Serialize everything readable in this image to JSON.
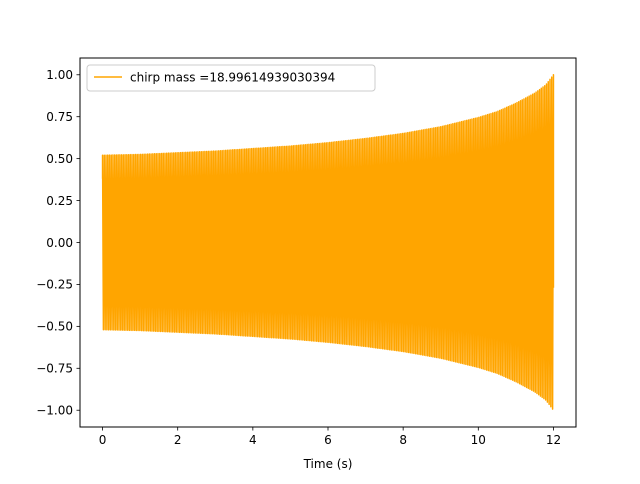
{
  "chart_data": {
    "type": "line",
    "title": "",
    "xlabel": "Time (s)",
    "ylabel": "",
    "xlim": [
      -0.6,
      12.6
    ],
    "ylim": [
      -1.1,
      1.1
    ],
    "xticks": [
      0,
      2,
      4,
      6,
      8,
      10,
      12
    ],
    "yticks": [
      -1.0,
      -0.75,
      -0.5,
      -0.25,
      0.0,
      0.25,
      0.5,
      0.75,
      1.0
    ],
    "xtick_labels": [
      "0",
      "2",
      "4",
      "6",
      "8",
      "10",
      "12"
    ],
    "ytick_labels": [
      "−1.00",
      "−0.75",
      "−0.50",
      "−0.25",
      "0.00",
      "0.25",
      "0.50",
      "0.75",
      "1.00"
    ],
    "grid": false,
    "legend": {
      "placement": "upper-left",
      "entries": [
        "chirp mass =18.99614939030394"
      ]
    },
    "series": [
      {
        "name": "chirp mass =18.99614939030394",
        "color": "#ffa500",
        "signal": "chirp",
        "t_start": 0,
        "t_end": 12,
        "start_value": 0.38,
        "end_value": -0.27,
        "envelope": {
          "t": [
            0,
            1,
            2,
            3,
            4,
            5,
            6,
            7,
            8,
            9,
            10,
            10.5,
            11,
            11.5,
            11.8,
            12
          ],
          "amp": [
            0.52,
            0.525,
            0.535,
            0.545,
            0.56,
            0.575,
            0.595,
            0.62,
            0.65,
            0.69,
            0.745,
            0.78,
            0.83,
            0.89,
            0.94,
            1.0
          ]
        }
      }
    ]
  }
}
